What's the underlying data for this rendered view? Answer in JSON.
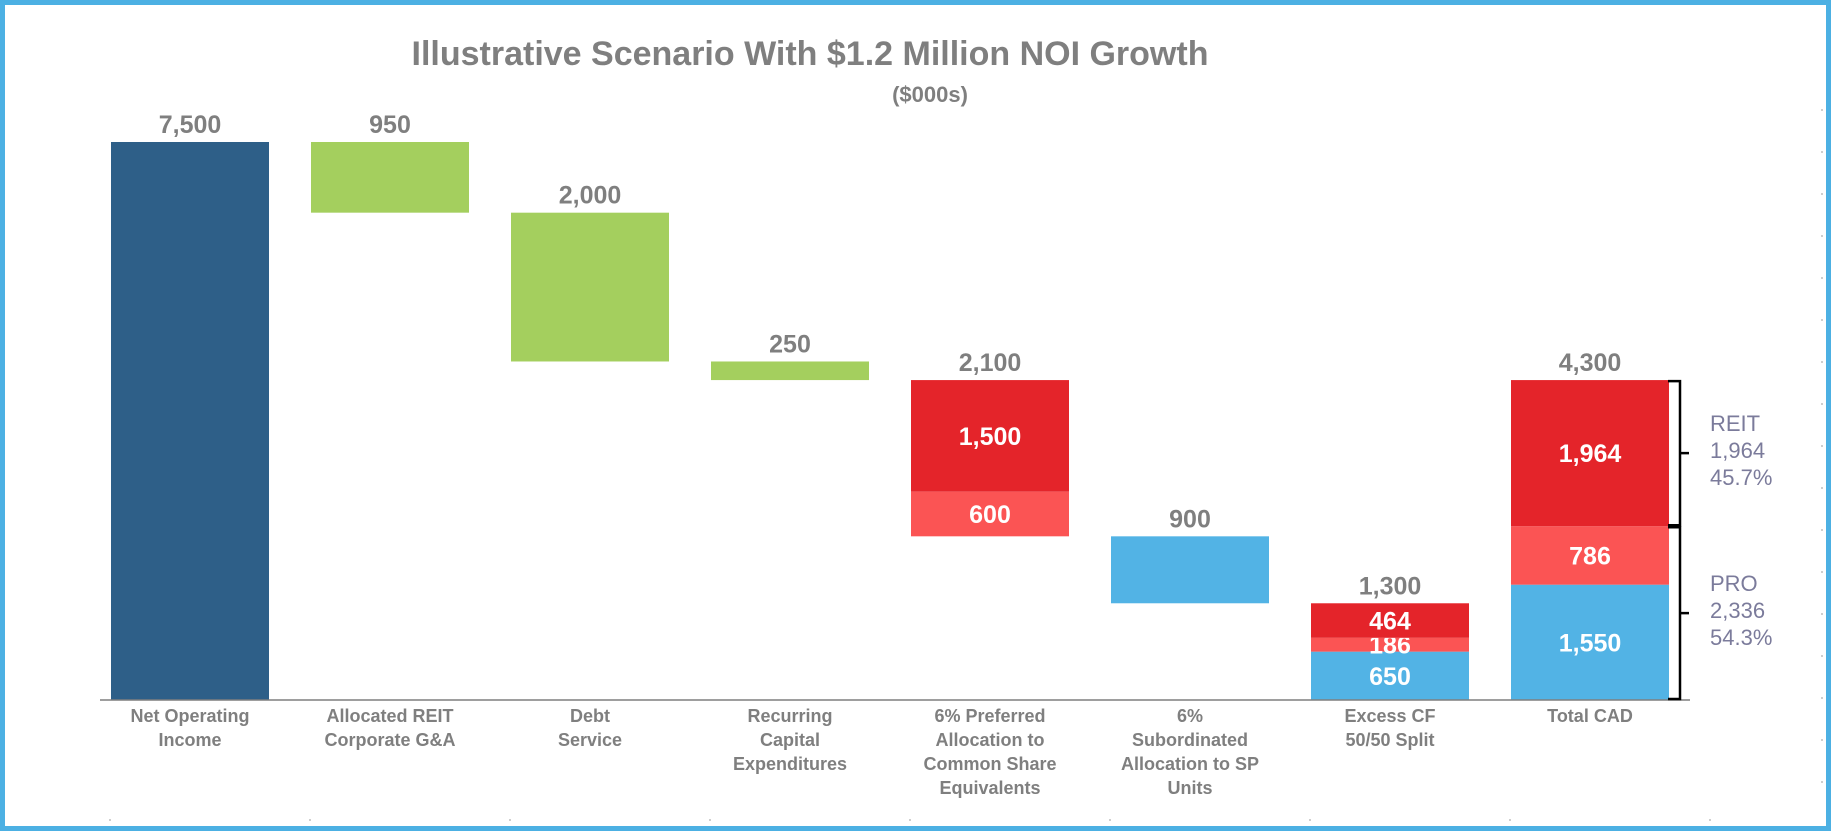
{
  "chart_data": {
    "type": "bar",
    "title": "Illustrative Scenario With $1.2 Million NOI Growth",
    "subtitle": "($000s)",
    "ylim": [
      0,
      8000
    ],
    "colors": {
      "noi": "#2e5f88",
      "deduction": "#a4cf5e",
      "reit": "#e4242a",
      "reit_light": "#fb5454",
      "pro": "#52b3e5",
      "top_label": "#7f7f7f",
      "side_label": "#7b7b9b"
    },
    "categories": [
      {
        "label": [
          "Net Operating",
          "Income"
        ],
        "total": "7,500",
        "segments": [
          {
            "base": 0,
            "value": 7500,
            "color": "noi",
            "label": ""
          }
        ]
      },
      {
        "label": [
          "Allocated REIT",
          "Corporate G&A"
        ],
        "total": "950",
        "segments": [
          {
            "base": 6550,
            "value": 950,
            "color": "deduction",
            "label": ""
          }
        ]
      },
      {
        "label": [
          "Debt",
          "Service"
        ],
        "total": "2,000",
        "segments": [
          {
            "base": 4550,
            "value": 2000,
            "color": "deduction",
            "label": ""
          }
        ]
      },
      {
        "label": [
          "Recurring",
          "Capital",
          "Expenditures"
        ],
        "total": "250",
        "segments": [
          {
            "base": 4300,
            "value": 250,
            "color": "deduction",
            "label": ""
          }
        ]
      },
      {
        "label": [
          "6% Preferred",
          "Allocation to",
          "Common Share",
          "Equivalents"
        ],
        "total": "2,100",
        "segments": [
          {
            "base": 2200,
            "value": 1500,
            "color": "reit",
            "label": "1,500"
          },
          {
            "base": 2200,
            "value": 600,
            "color": "reit_light",
            "label": "600"
          }
        ]
      },
      {
        "label": [
          "6%",
          "Subordinated",
          "Allocation to SP",
          "Units"
        ],
        "total": "900",
        "segments": [
          {
            "base": 1300,
            "value": 900,
            "color": "pro",
            "label": ""
          }
        ]
      },
      {
        "label": [
          "Excess CF",
          "50/50 Split"
        ],
        "total": "1,300",
        "segments": [
          {
            "base": 0,
            "value": 650,
            "color": "pro",
            "label": "650"
          },
          {
            "base": 0,
            "value": 186,
            "color": "reit_light",
            "label": "186"
          },
          {
            "base": 0,
            "value": 464,
            "color": "reit",
            "label": "464"
          }
        ]
      },
      {
        "label": [
          "Total CAD"
        ],
        "total": "4,300",
        "segments": [
          {
            "base": 0,
            "value": 1550,
            "color": "pro",
            "label": "1,550"
          },
          {
            "base": 0,
            "value": 786,
            "color": "reit_light",
            "label": "786"
          },
          {
            "base": 0,
            "value": 1964,
            "color": "reit",
            "label": "1,964"
          }
        ]
      }
    ],
    "brackets": [
      {
        "name": "REIT",
        "amount": "1,964",
        "percent": "45.7%",
        "from": 2336,
        "to": 4300
      },
      {
        "name": "PRO",
        "amount": "2,336",
        "percent": "54.3%",
        "from": 0,
        "to": 2336
      }
    ]
  }
}
